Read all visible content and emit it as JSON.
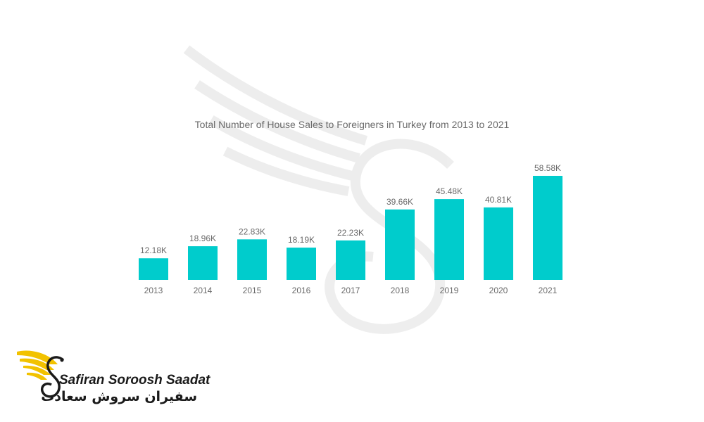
{
  "colors": {
    "bar": "#00cccc",
    "label": "#6a6a6a",
    "logo_gold": "#f2c200"
  },
  "brand": {
    "name": "Safiran Soroosh Saadat",
    "name_fa": "سفیران سروش سعادت"
  },
  "chart_data": {
    "type": "bar",
    "title": "Total Number of House Sales to Foreigners in Turkey from 2013 to 2021",
    "xlabel": "",
    "ylabel": "",
    "categories": [
      "2013",
      "2014",
      "2015",
      "2016",
      "2017",
      "2018",
      "2019",
      "2020",
      "2021"
    ],
    "values": [
      12.18,
      18.96,
      22.83,
      18.19,
      22.23,
      39.66,
      45.48,
      40.81,
      58.58
    ],
    "data_labels": [
      "12.18K",
      "18.96K",
      "22.83K",
      "18.19K",
      "22.23K",
      "39.66K",
      "45.48K",
      "40.81K",
      "58.58K"
    ],
    "unit": "K",
    "ylim": [
      0,
      58.58
    ],
    "grid": false,
    "legend": "none"
  }
}
